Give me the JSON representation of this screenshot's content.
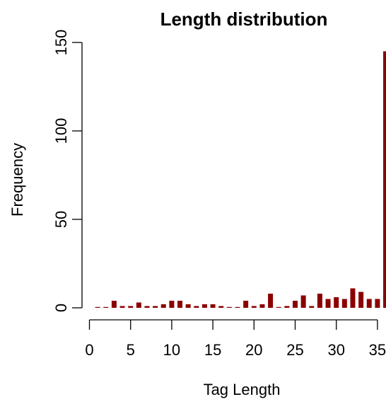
{
  "chart_data": {
    "type": "bar",
    "title": "Length distribution",
    "xlabel": "Tag Length",
    "ylabel": "Frequency",
    "x": [
      1,
      2,
      3,
      4,
      5,
      6,
      7,
      8,
      9,
      10,
      11,
      12,
      13,
      14,
      15,
      16,
      17,
      18,
      19,
      20,
      21,
      22,
      23,
      24,
      25,
      26,
      27,
      28,
      29,
      30,
      31,
      32,
      33,
      34,
      35,
      36
    ],
    "values": [
      0,
      0,
      4,
      1,
      1,
      3,
      1,
      1,
      2,
      4,
      4,
      2,
      1,
      2,
      2,
      1,
      0,
      0,
      4,
      1,
      2,
      8,
      0,
      1,
      4,
      7,
      1,
      8,
      5,
      6,
      5,
      11,
      9,
      5,
      5,
      145
    ],
    "xlim": [
      1,
      36
    ],
    "ylim": [
      0,
      150
    ],
    "xticks": [
      "0",
      "5",
      "10",
      "15",
      "20",
      "25",
      "30",
      "35"
    ],
    "yticks": [
      "0",
      "50",
      "100",
      "150"
    ],
    "bar_color": "#8b0000",
    "grid": false,
    "legend": "none"
  }
}
